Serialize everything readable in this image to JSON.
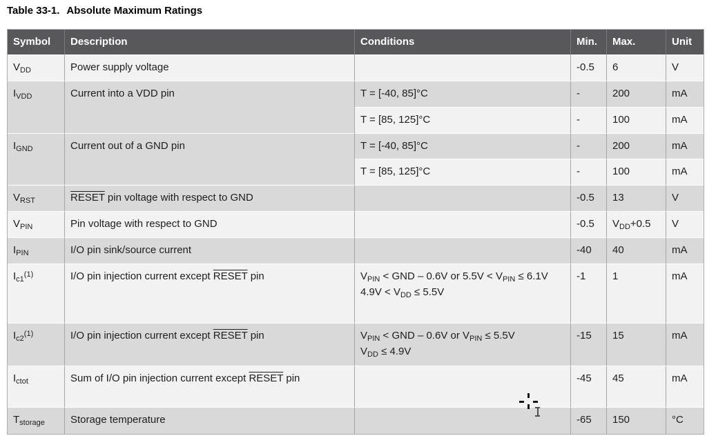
{
  "caption": {
    "label": "Table 33-1.",
    "title": "Absolute Maximum Ratings"
  },
  "colors": {
    "header_bg": "#58585a",
    "header_text": "#ffffff",
    "row_light": "#f2f2f2",
    "row_dark": "#d9d9d9",
    "grid_vertical": "#a6a6a6",
    "grid_horizontal": "#fdfdfd"
  },
  "table": {
    "columns": [
      {
        "label": "Symbol"
      },
      {
        "label": "Description"
      },
      {
        "label": "Conditions"
      },
      {
        "label": "Min."
      },
      {
        "label": "Max."
      },
      {
        "label": "Unit"
      }
    ],
    "rows": [
      {
        "shade": "light",
        "symbol": "V~DD~",
        "description": "Power supply voltage",
        "conditions": [
          {
            "shade": "light",
            "cond": "",
            "min": "-0.5",
            "max": "6",
            "unit": "V"
          }
        ]
      },
      {
        "shade": "dark",
        "symbol": "I~VDD~",
        "description": "Current into a VDD pin",
        "conditions": [
          {
            "shade": "dark",
            "cond": "T = [-40, 85]°C",
            "min": "-",
            "max": "200",
            "unit": "mA"
          },
          {
            "shade": "light",
            "cond": "T = [85, 125]°C",
            "min": "-",
            "max": "100",
            "unit": "mA"
          }
        ]
      },
      {
        "shade": "dark",
        "symbol": "I~GND~",
        "description": "Current out of a GND pin",
        "conditions": [
          {
            "shade": "dark",
            "cond": "T = [-40, 85]°C",
            "min": "-",
            "max": "200",
            "unit": "mA"
          },
          {
            "shade": "light",
            "cond": "T = [85, 125]°C",
            "min": "-",
            "max": "100",
            "unit": "mA"
          }
        ]
      },
      {
        "shade": "dark",
        "symbol": "V~RST~",
        "description": "|RESET| pin voltage with respect to GND",
        "conditions": [
          {
            "shade": "dark",
            "cond": "",
            "min": "-0.5",
            "max": "13",
            "unit": "V"
          }
        ]
      },
      {
        "shade": "light",
        "symbol": "V~PIN~",
        "description": "Pin voltage with respect to GND",
        "conditions": [
          {
            "shade": "light",
            "cond": "",
            "min": "-0.5",
            "max": "V~DD~+0.5",
            "unit": "V"
          }
        ]
      },
      {
        "shade": "dark",
        "symbol": "I~PIN~",
        "description": "I/O pin sink/source current",
        "conditions": [
          {
            "shade": "dark",
            "cond": "",
            "min": "-40",
            "max": "40",
            "unit": "mA"
          }
        ]
      },
      {
        "shade": "light",
        "symbol": "I~c1~^(1)^",
        "description": "I/O pin injection current except |RESET| pin",
        "conditions": [
          {
            "shade": "light",
            "cond": "V~PIN~ < GND – 0.6V or 5.5V < V~PIN~ ≤ 6.1V\n4.9V < V~DD~ ≤ 5.5V",
            "min": "-1",
            "max": "1",
            "unit": "mA"
          }
        ]
      },
      {
        "shade": "dark",
        "symbol": "I~c2~^(1)^",
        "description": "I/O pin injection current except |RESET| pin",
        "conditions": [
          {
            "shade": "dark",
            "cond": "V~PIN~ < GND – 0.6V or V~PIN~ ≤ 5.5V\nV~DD~ ≤ 4.9V",
            "min": "-15",
            "max": "15",
            "unit": "mA"
          }
        ]
      },
      {
        "shade": "light",
        "symbol": "I~ctot~",
        "description": "Sum of I/O pin injection current except |RESET| pin",
        "conditions": [
          {
            "shade": "light",
            "cond": "",
            "min": "-45",
            "max": "45",
            "unit": "mA"
          }
        ]
      },
      {
        "shade": "dark",
        "symbol": "T~storage~",
        "description": "Storage temperature",
        "conditions": [
          {
            "shade": "dark",
            "cond": "",
            "min": "-65",
            "max": "150",
            "unit": "°C"
          }
        ]
      }
    ]
  }
}
